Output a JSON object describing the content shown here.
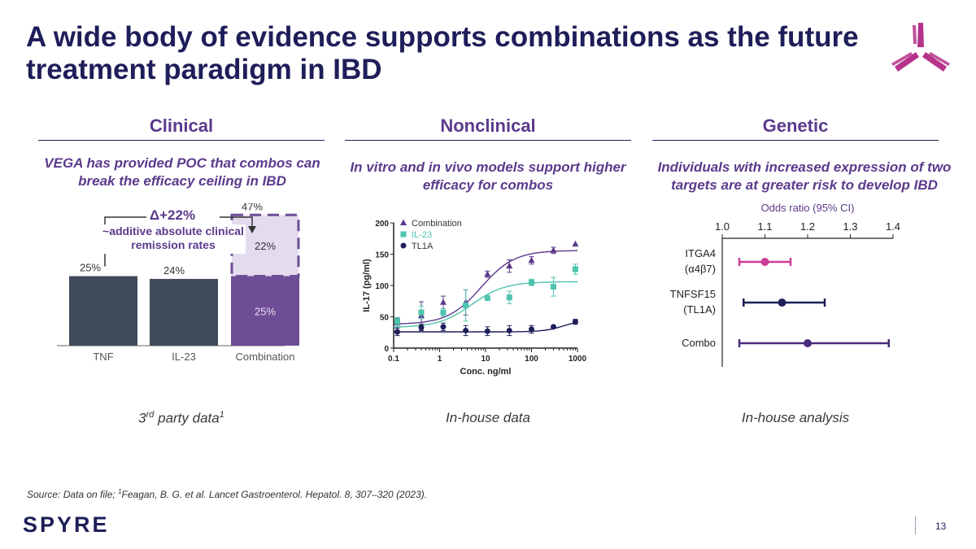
{
  "title": "A wide body of evidence supports combinations as the future treatment paradigm in IBD",
  "sections": {
    "clinical": {
      "heading": "Clinical",
      "subtitle": "VEGA has provided POC that combos can break the efficacy ceiling in IBD",
      "caption_main": "3",
      "caption_sup": "rd",
      "caption_rest": " party data",
      "caption_fn": "1"
    },
    "nonclinical": {
      "heading": "Nonclinical",
      "subtitle": "In vitro and in vivo models support higher efficacy for combos",
      "caption": "In-house data"
    },
    "genetic": {
      "heading": "Genetic",
      "subtitle": "Individuals with increased expression of two targets are at greater risk to develop IBD",
      "caption": "In-house analysis"
    }
  },
  "source": {
    "prefix": "Source: Data on file; ",
    "sup": "1",
    "text": "Feagan, B. G. et al. Lancet Gastroenterol. Hepatol. 8, 307–320 (2023)."
  },
  "brand": "SPYRE",
  "page_number": "13",
  "colors": {
    "navy": "#1e1e5a",
    "purple": "#5b3a8c",
    "bar_dark": "#3f4a5a",
    "bar_purple": "#6e4d96",
    "bar_light": "#e3dcef",
    "teal": "#4ec3ad",
    "magenta": "#cc3d96",
    "logo": "#b5338a"
  },
  "chart_data": [
    {
      "type": "bar",
      "categories": [
        "TNF",
        "IL-23",
        "Combination"
      ],
      "values": [
        25,
        24,
        25
      ],
      "value_labels": [
        "25%",
        "24%",
        "25%"
      ],
      "stacked_additive": {
        "category": "Combination",
        "value": 22,
        "label": "22%"
      },
      "total_label": "47%",
      "delta_label": "Δ+22%",
      "annotation": "~additive absolute clinical remission rates",
      "ylim": [
        0,
        50
      ]
    },
    {
      "type": "scatter",
      "xscale": "log",
      "xlabel": "Conc. ng/ml",
      "ylabel": "IL-17 (pg/ml)",
      "xlim": [
        0.1,
        1000
      ],
      "ylim": [
        0,
        200
      ],
      "xticks": [
        "0.1",
        "1",
        "10",
        "100",
        "1000"
      ],
      "yticks": [
        "0",
        "50",
        "100",
        "150",
        "200"
      ],
      "series": [
        {
          "name": "Combination",
          "marker": "triangle",
          "x": [
            0.12,
            0.4,
            1.2,
            3.7,
            11,
            33,
            100,
            300,
            900
          ],
          "y": [
            40,
            52,
            73,
            73,
            118,
            131,
            140,
            156,
            166
          ],
          "err": [
            8,
            22,
            10,
            20,
            5,
            10,
            6,
            5,
            0
          ],
          "curve": {
            "bottom": 38,
            "top": 156,
            "ec50": 8,
            "hill": 1.2
          }
        },
        {
          "name": "IL-23",
          "marker": "square",
          "x": [
            0.12,
            0.4,
            1.2,
            3.7,
            11,
            33,
            100,
            300,
            900
          ],
          "y": [
            43,
            57,
            57,
            68,
            80,
            81,
            105,
            98,
            126
          ],
          "err": [
            6,
            10,
            6,
            25,
            4,
            10,
            5,
            15,
            8
          ],
          "curve": {
            "bottom": 33,
            "top": 106,
            "ec50": 5,
            "hill": 1.2
          }
        },
        {
          "name": "TL1A",
          "marker": "circle",
          "x": [
            0.12,
            0.4,
            1.2,
            3.7,
            11,
            33,
            100,
            300,
            900
          ],
          "y": [
            26,
            33,
            34,
            28,
            27,
            28,
            30,
            34,
            42
          ],
          "err": [
            6,
            5,
            6,
            8,
            7,
            8,
            6,
            0,
            4
          ],
          "curve": {
            "bottom": 26,
            "top": 45,
            "ec50": 500,
            "hill": 2
          }
        }
      ]
    },
    {
      "type": "forest",
      "title": "Odds ratio (95% CI)",
      "xlim": [
        1.0,
        1.4
      ],
      "xticks": [
        "1.0",
        "1.1",
        "1.2",
        "1.3",
        "1.4"
      ],
      "rows": [
        {
          "label1": "ITGA4",
          "label2": "(α4β7)",
          "estimate": 1.1,
          "low": 1.04,
          "high": 1.16,
          "color": "#cc3d96"
        },
        {
          "label1": "TNFSF15",
          "label2": "(TL1A)",
          "estimate": 1.14,
          "low": 1.05,
          "high": 1.24,
          "color": "#1e1e5a"
        },
        {
          "label1": "Combo",
          "label2": "",
          "estimate": 1.2,
          "low": 1.04,
          "high": 1.39,
          "color": "#4a2c7a"
        }
      ]
    }
  ]
}
